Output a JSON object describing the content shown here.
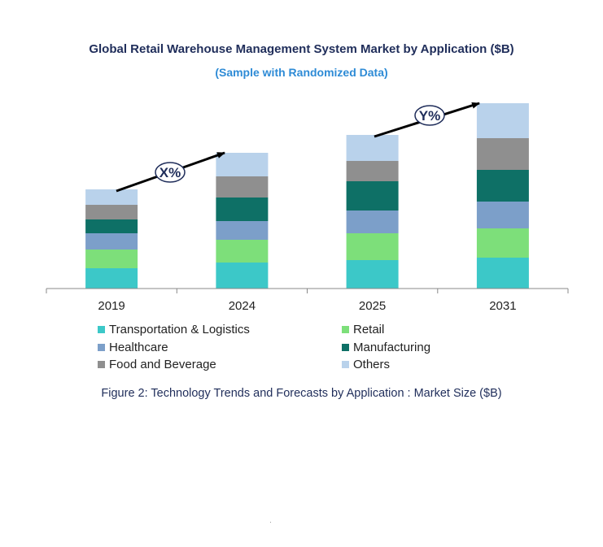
{
  "chart_data": {
    "type": "bar",
    "stacked": true,
    "title": "Global Retail Warehouse Management System Market by Application ($B)",
    "subtitle": "(Sample with Randomized Data)",
    "categories": [
      "2019",
      "2024",
      "2025",
      "2031"
    ],
    "series": [
      {
        "name": "Transportation & Logistics",
        "color": "#3cc8c8",
        "values": [
          25,
          32,
          35,
          38
        ]
      },
      {
        "name": "Retail",
        "color": "#7ddf7a",
        "values": [
          23,
          28,
          33,
          36
        ]
      },
      {
        "name": "Healthcare",
        "color": "#7c9fc9",
        "values": [
          20,
          23,
          28,
          33
        ]
      },
      {
        "name": "Manufacturing",
        "color": "#0e7066",
        "values": [
          17,
          29,
          36,
          39
        ]
      },
      {
        "name": "Food and Beverage",
        "color": "#8f8f8f",
        "values": [
          18,
          26,
          25,
          39
        ]
      },
      {
        "name": "Others",
        "color": "#b9d2eb",
        "values": [
          19,
          29,
          32,
          43
        ]
      }
    ],
    "ylim": [
      0,
      230
    ],
    "grid": false,
    "legend": "bottom",
    "annotations": [
      {
        "text": "X%",
        "from": "2019",
        "to": "2024"
      },
      {
        "text": "Y%",
        "from": "2025",
        "to": "2031"
      }
    ],
    "caption": "Figure 2: Technology  Trends  and Forecasts by Application : Market Size ($B)"
  }
}
